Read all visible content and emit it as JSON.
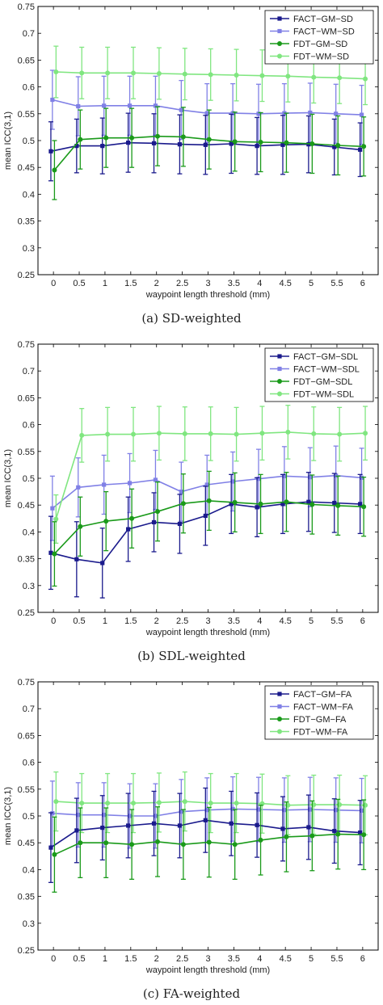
{
  "chart_data": [
    {
      "type": "line",
      "caption": "(a) SD-weighted",
      "xlabel": "waypoint length threshold (mm)",
      "ylabel": "mean ICC(3,1)",
      "ylim": [
        0.25,
        0.75
      ],
      "xlim": [
        -0.3,
        6.3
      ],
      "xticks": [
        "0",
        "0.5",
        "1",
        "1.5",
        "2",
        "2.5",
        "3",
        "3.5",
        "4",
        "4.5",
        "5",
        "5.5",
        "6"
      ],
      "yticks": [
        "0.25",
        "0.3",
        "0.35",
        "0.4",
        "0.45",
        "0.5",
        "0.55",
        "0.6",
        "0.65",
        "0.7",
        "0.75"
      ],
      "x": [
        0,
        0.5,
        1,
        1.5,
        2,
        2.5,
        3,
        3.5,
        4,
        4.5,
        5,
        5.5,
        6
      ],
      "legend_position": "top-right",
      "grid": false,
      "series": [
        {
          "name": "FACT−GM−SD",
          "color": "#1a1a8c",
          "marker": "square",
          "xoffset": -0.05,
          "values": [
            0.48,
            0.49,
            0.49,
            0.496,
            0.495,
            0.493,
            0.492,
            0.494,
            0.49,
            0.492,
            0.493,
            0.488,
            0.483
          ],
          "errors": [
            0.055,
            0.05,
            0.052,
            0.055,
            0.055,
            0.055,
            0.055,
            0.055,
            0.053,
            0.055,
            0.053,
            0.052,
            0.05
          ]
        },
        {
          "name": "FACT−WM−SD",
          "color": "#8080e6",
          "marker": "square",
          "xoffset": -0.02,
          "values": [
            0.576,
            0.564,
            0.565,
            0.565,
            0.565,
            0.557,
            0.551,
            0.551,
            0.55,
            0.551,
            0.552,
            0.55,
            0.548
          ],
          "errors": [
            0.055,
            0.055,
            0.055,
            0.055,
            0.055,
            0.055,
            0.055,
            0.055,
            0.055,
            0.055,
            0.055,
            0.055,
            0.055
          ]
        },
        {
          "name": "FDT−GM−SD",
          "color": "#1a9a1a",
          "marker": "circle",
          "xoffset": 0.02,
          "values": [
            0.445,
            0.502,
            0.505,
            0.505,
            0.508,
            0.507,
            0.502,
            0.498,
            0.497,
            0.496,
            0.494,
            0.491,
            0.489
          ],
          "errors": [
            0.055,
            0.055,
            0.055,
            0.055,
            0.055,
            0.055,
            0.055,
            0.055,
            0.055,
            0.055,
            0.055,
            0.055,
            0.055
          ]
        },
        {
          "name": "FDT−WM−SD",
          "color": "#80e680",
          "marker": "circle",
          "xoffset": 0.05,
          "values": [
            0.628,
            0.626,
            0.626,
            0.626,
            0.625,
            0.624,
            0.623,
            0.622,
            0.621,
            0.62,
            0.618,
            0.617,
            0.615
          ],
          "errors": [
            0.048,
            0.048,
            0.048,
            0.048,
            0.048,
            0.048,
            0.048,
            0.048,
            0.048,
            0.048,
            0.048,
            0.048,
            0.048
          ]
        }
      ]
    },
    {
      "type": "line",
      "caption": "(b) SDL-weighted",
      "xlabel": "waypoint length threshold (mm)",
      "ylabel": "mean ICC(3,1)",
      "ylim": [
        0.25,
        0.75
      ],
      "xlim": [
        -0.3,
        6.3
      ],
      "xticks": [
        "0",
        "0.5",
        "1",
        "1.5",
        "2",
        "2.5",
        "3",
        "3.5",
        "4",
        "4.5",
        "5",
        "5.5",
        "6"
      ],
      "yticks": [
        "0.25",
        "0.3",
        "0.35",
        "0.4",
        "0.45",
        "0.5",
        "0.55",
        "0.6",
        "0.65",
        "0.7",
        "0.75"
      ],
      "x": [
        0,
        0.5,
        1,
        1.5,
        2,
        2.5,
        3,
        3.5,
        4,
        4.5,
        5,
        5.5,
        6
      ],
      "legend_position": "top-right",
      "grid": false,
      "series": [
        {
          "name": "FACT−GM−SDL",
          "color": "#1a1a8c",
          "marker": "square",
          "xoffset": -0.05,
          "values": [
            0.361,
            0.349,
            0.342,
            0.405,
            0.418,
            0.415,
            0.43,
            0.452,
            0.446,
            0.452,
            0.456,
            0.454,
            0.452
          ],
          "errors": [
            0.068,
            0.07,
            0.065,
            0.06,
            0.055,
            0.055,
            0.055,
            0.055,
            0.055,
            0.055,
            0.055,
            0.055,
            0.055
          ]
        },
        {
          "name": "FACT−WM−SDL",
          "color": "#8080e6",
          "marker": "square",
          "xoffset": -0.02,
          "values": [
            0.444,
            0.483,
            0.488,
            0.491,
            0.497,
            0.475,
            0.488,
            0.494,
            0.499,
            0.504,
            0.502,
            0.505,
            0.501
          ],
          "errors": [
            0.06,
            0.055,
            0.055,
            0.055,
            0.055,
            0.055,
            0.055,
            0.055,
            0.055,
            0.055,
            0.055,
            0.055,
            0.055
          ]
        },
        {
          "name": "FDT−GM−SDL",
          "color": "#1a9a1a",
          "marker": "circle",
          "xoffset": 0.02,
          "values": [
            0.359,
            0.41,
            0.42,
            0.425,
            0.438,
            0.453,
            0.458,
            0.455,
            0.452,
            0.456,
            0.451,
            0.449,
            0.447
          ],
          "errors": [
            0.06,
            0.055,
            0.055,
            0.055,
            0.055,
            0.055,
            0.055,
            0.055,
            0.055,
            0.055,
            0.055,
            0.055,
            0.055
          ]
        },
        {
          "name": "FDT−WM−SDL",
          "color": "#80e680",
          "marker": "circle",
          "xoffset": 0.05,
          "values": [
            0.424,
            0.58,
            0.582,
            0.582,
            0.584,
            0.583,
            0.583,
            0.582,
            0.584,
            0.586,
            0.583,
            0.582,
            0.584
          ],
          "errors": [
            0.045,
            0.05,
            0.05,
            0.05,
            0.05,
            0.05,
            0.05,
            0.05,
            0.05,
            0.05,
            0.05,
            0.05,
            0.05
          ]
        }
      ]
    },
    {
      "type": "line",
      "caption": "(c) FA-weighted",
      "xlabel": "waypoint length threshold (mm)",
      "ylabel": "mean ICC(3,1)",
      "ylim": [
        0.25,
        0.75
      ],
      "xlim": [
        -0.3,
        6.3
      ],
      "xticks": [
        "0",
        "0.5",
        "1",
        "1.5",
        "2",
        "2.5",
        "3",
        "3.5",
        "4",
        "4.5",
        "5",
        "5.5",
        "6"
      ],
      "yticks": [
        "0.25",
        "0.3",
        "0.35",
        "0.4",
        "0.45",
        "0.5",
        "0.55",
        "0.6",
        "0.65",
        "0.7",
        "0.75"
      ],
      "x": [
        0,
        0.5,
        1,
        1.5,
        2,
        2.5,
        3,
        3.5,
        4,
        4.5,
        5,
        5.5,
        6
      ],
      "legend_position": "top-right",
      "grid": false,
      "series": [
        {
          "name": "FACT−GM−FA",
          "color": "#1a1a8c",
          "marker": "square",
          "xoffset": -0.05,
          "values": [
            0.441,
            0.473,
            0.478,
            0.482,
            0.486,
            0.482,
            0.492,
            0.486,
            0.483,
            0.476,
            0.479,
            0.472,
            0.469
          ],
          "errors": [
            0.065,
            0.06,
            0.06,
            0.06,
            0.06,
            0.06,
            0.06,
            0.06,
            0.06,
            0.06,
            0.06,
            0.06,
            0.06
          ]
        },
        {
          "name": "FACT−WM−FA",
          "color": "#8080e6",
          "marker": "square",
          "xoffset": -0.02,
          "values": [
            0.505,
            0.502,
            0.502,
            0.5,
            0.5,
            0.508,
            0.511,
            0.513,
            0.512,
            0.511,
            0.512,
            0.511,
            0.51
          ],
          "errors": [
            0.06,
            0.06,
            0.06,
            0.06,
            0.06,
            0.06,
            0.06,
            0.06,
            0.06,
            0.06,
            0.06,
            0.06,
            0.06
          ]
        },
        {
          "name": "FDT−GM−FA",
          "color": "#1a9a1a",
          "marker": "circle",
          "xoffset": 0.02,
          "values": [
            0.428,
            0.45,
            0.45,
            0.447,
            0.452,
            0.447,
            0.451,
            0.447,
            0.455,
            0.461,
            0.463,
            0.466,
            0.465
          ],
          "errors": [
            0.07,
            0.065,
            0.065,
            0.065,
            0.065,
            0.065,
            0.065,
            0.065,
            0.065,
            0.065,
            0.065,
            0.065,
            0.065
          ]
        },
        {
          "name": "FDT−WM−FA",
          "color": "#80e680",
          "marker": "circle",
          "xoffset": 0.05,
          "values": [
            0.527,
            0.524,
            0.524,
            0.524,
            0.525,
            0.527,
            0.524,
            0.524,
            0.523,
            0.52,
            0.521,
            0.521,
            0.52
          ],
          "errors": [
            0.055,
            0.055,
            0.055,
            0.055,
            0.055,
            0.055,
            0.055,
            0.055,
            0.055,
            0.055,
            0.055,
            0.055,
            0.055
          ]
        }
      ]
    }
  ]
}
